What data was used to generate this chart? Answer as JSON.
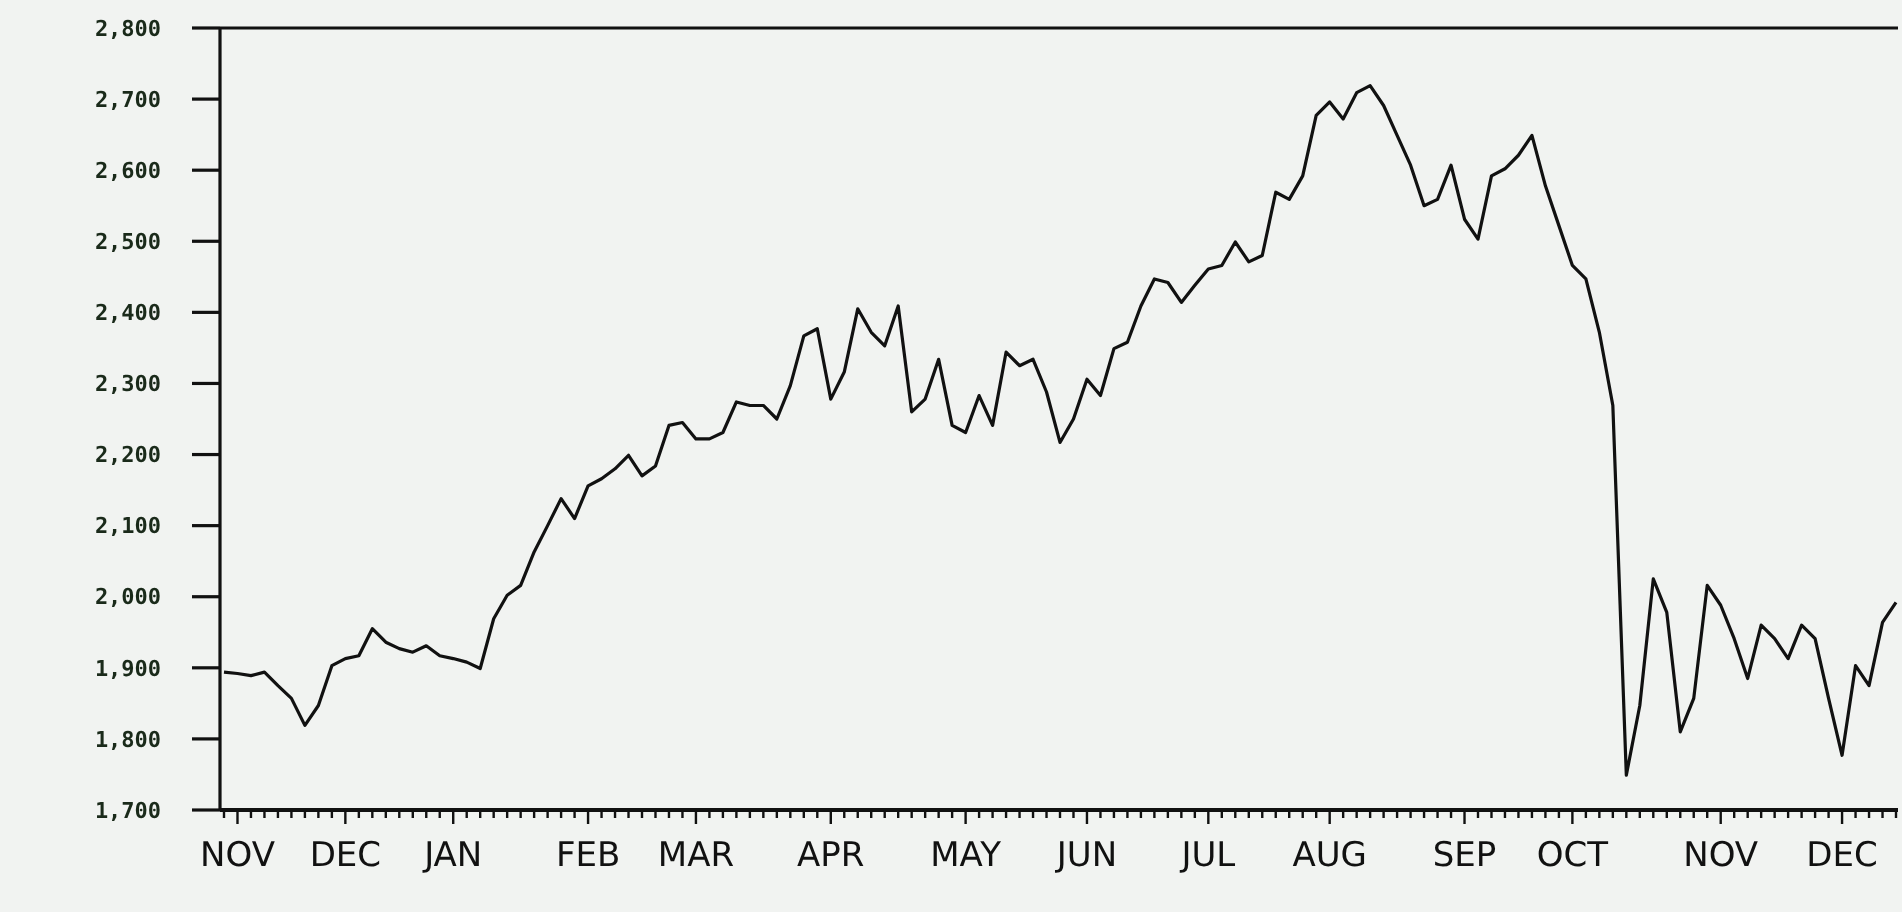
{
  "chart_data": {
    "type": "line",
    "categories": [
      null,
      "NOV",
      null,
      null,
      null,
      null,
      null,
      null,
      null,
      "DEC",
      null,
      null,
      null,
      null,
      null,
      null,
      null,
      "JAN",
      null,
      null,
      null,
      null,
      null,
      null,
      null,
      null,
      null,
      "FEB",
      null,
      null,
      null,
      null,
      null,
      null,
      null,
      "MAR",
      null,
      null,
      null,
      null,
      null,
      null,
      null,
      null,
      null,
      "APR",
      null,
      null,
      null,
      null,
      null,
      null,
      null,
      null,
      null,
      "MAY",
      null,
      null,
      null,
      null,
      null,
      null,
      null,
      null,
      "JUN",
      null,
      null,
      null,
      null,
      null,
      null,
      null,
      null,
      "JUL",
      null,
      null,
      null,
      null,
      null,
      null,
      null,
      null,
      "AUG",
      null,
      null,
      null,
      null,
      null,
      null,
      null,
      null,
      null,
      "SEP",
      null,
      null,
      null,
      null,
      null,
      null,
      null,
      "OCT",
      null,
      null,
      null,
      null,
      null,
      null,
      null,
      null,
      null,
      null,
      "NOV",
      null,
      null,
      null,
      null,
      null,
      null,
      null,
      null,
      "DEC",
      null,
      null,
      null,
      null
    ],
    "series": [
      {
        "color": "#111111",
        "values": [
          1894,
          1892,
          1889,
          1894,
          1875,
          1857,
          1819,
          1847,
          1903,
          1913,
          1917,
          1955,
          1936,
          1927,
          1922,
          1931,
          1917,
          1913,
          1908,
          1899,
          1969,
          2002,
          2016,
          2063,
          2100,
          2138,
          2110,
          2156,
          2166,
          2180,
          2199,
          2170,
          2184,
          2241,
          2245,
          2222,
          2222,
          2231,
          2274,
          2269,
          2269,
          2250,
          2297,
          2367,
          2377,
          2278,
          2316,
          2405,
          2372,
          2353,
          2409,
          2260,
          2278,
          2334,
          2241,
          2231,
          2283,
          2241,
          2344,
          2325,
          2334,
          2288,
          2217,
          2250,
          2306,
          2283,
          2349,
          2358,
          2409,
          2447,
          2442,
          2414,
          2438,
          2461,
          2466,
          2499,
          2471,
          2480,
          2569,
          2559,
          2592,
          2677,
          2696,
          2672,
          2709,
          2719,
          2691,
          2649,
          2607,
          2550,
          2559,
          2607,
          2531,
          2503,
          2592,
          2602,
          2621,
          2649,
          2578,
          2522,
          2466,
          2447,
          2372,
          2269,
          1749,
          1847,
          2025,
          1978,
          1810,
          1857,
          2016,
          1988,
          1941,
          1885,
          1960,
          1941,
          1913,
          1960,
          1941,
          1857,
          1777,
          1903,
          1875,
          1964,
          1992
        ]
      }
    ],
    "ylim": [
      1700,
      2800
    ],
    "yticks": [
      {
        "value": 1700,
        "label": "1,700"
      },
      {
        "value": 1800,
        "label": "1,800"
      },
      {
        "value": 1900,
        "label": "1,900"
      },
      {
        "value": 2000,
        "label": "2,000"
      },
      {
        "value": 2100,
        "label": "2,100"
      },
      {
        "value": 2200,
        "label": "2,200"
      },
      {
        "value": 2300,
        "label": "2,300"
      },
      {
        "value": 2400,
        "label": "2,400"
      },
      {
        "value": 2500,
        "label": "2,500"
      },
      {
        "value": 2600,
        "label": "2,600"
      },
      {
        "value": 2700,
        "label": "2,700"
      },
      {
        "value": 2800,
        "label": "2,800"
      }
    ],
    "grid": false,
    "marker": "none",
    "line_style": "solid"
  }
}
